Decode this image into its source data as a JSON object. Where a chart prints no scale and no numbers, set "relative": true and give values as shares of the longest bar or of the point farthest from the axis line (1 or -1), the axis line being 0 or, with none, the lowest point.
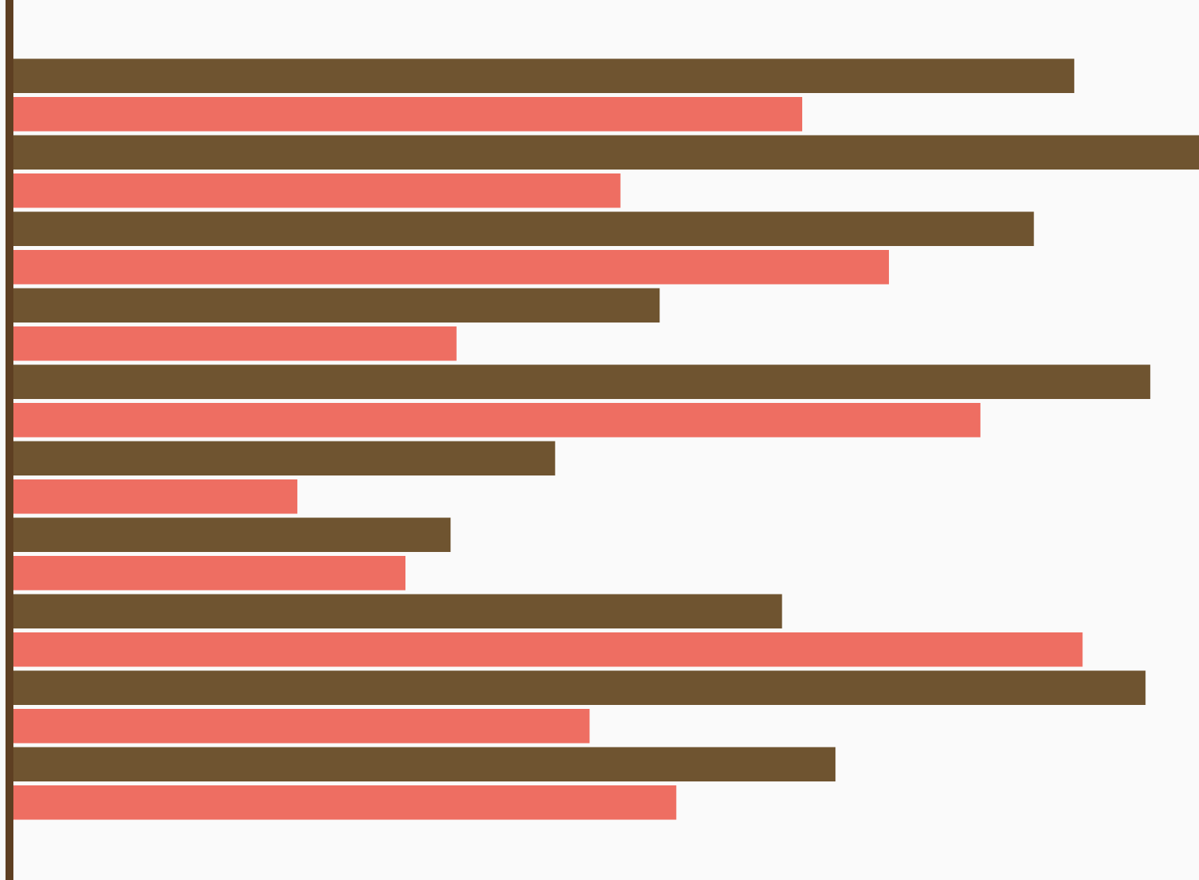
{
  "chart_data": {
    "type": "bar",
    "orientation": "horizontal",
    "relative": true,
    "categories": [
      null,
      null,
      null,
      null,
      null,
      null,
      null,
      null,
      null,
      null
    ],
    "series": [
      {
        "color": "#6f5430",
        "values": [
          0.895,
          1,
          0.861,
          0.546,
          0.959,
          0.458,
          0.37,
          0.649,
          0.955,
          0.694
        ]
      },
      {
        "color": "#ee6e62",
        "values": [
          0.666,
          0.513,
          0.739,
          0.375,
          0.816,
          0.241,
          0.332,
          0.902,
          0.487,
          0.56
        ]
      }
    ],
    "legend": false
  }
}
